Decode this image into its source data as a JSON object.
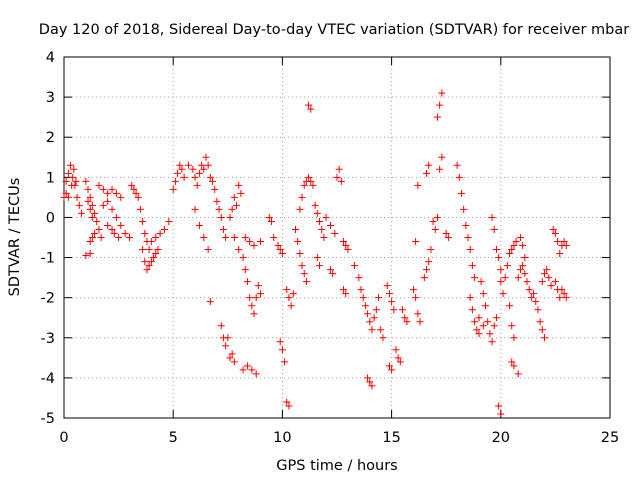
{
  "chart_data": {
    "type": "scatter",
    "title": "Day 120 of 2018, Sidereal Day-to-day VTEC variation (SDTVAR) for receiver mbar",
    "xlabel": "GPS time / hours",
    "ylabel": "SDTVAR / TECUs",
    "xlim": [
      0,
      25
    ],
    "ylim": [
      -5,
      4
    ],
    "xticks": [
      0,
      5,
      10,
      15,
      20,
      25
    ],
    "yticks": [
      -5,
      -4,
      -3,
      -2,
      -1,
      0,
      1,
      2,
      3,
      4
    ],
    "grid": true,
    "marker": "+",
    "color": "#ff0000",
    "series": [
      {
        "name": "SDTVAR",
        "points": [
          [
            0.0,
            0.5
          ],
          [
            0.1,
            0.9
          ],
          [
            0.2,
            1.1
          ],
          [
            0.3,
            1.3
          ],
          [
            0.4,
            1.0
          ],
          [
            0.5,
            0.8
          ],
          [
            0.6,
            0.5
          ],
          [
            0.7,
            0.3
          ],
          [
            0.8,
            0.1
          ],
          [
            0.1,
            0.6
          ],
          [
            0.2,
            0.5
          ],
          [
            0.35,
            0.8
          ],
          [
            0.45,
            1.2
          ],
          [
            0.55,
            0.9
          ],
          [
            1.0,
            0.9
          ],
          [
            1.1,
            0.7
          ],
          [
            1.2,
            0.5
          ],
          [
            1.3,
            0.3
          ],
          [
            1.4,
            0.1
          ],
          [
            1.5,
            -0.1
          ],
          [
            1.6,
            -0.3
          ],
          [
            1.7,
            -0.5
          ],
          [
            1.1,
            0.4
          ],
          [
            1.2,
            0.2
          ],
          [
            1.3,
            0.0
          ],
          [
            1.2,
            -0.6
          ],
          [
            1.3,
            -0.5
          ],
          [
            1.4,
            -0.4
          ],
          [
            1.0,
            -0.95
          ],
          [
            1.2,
            -0.9
          ],
          [
            1.8,
            0.3
          ],
          [
            2.0,
            0.4
          ],
          [
            2.2,
            0.2
          ],
          [
            2.4,
            0.0
          ],
          [
            2.6,
            -0.2
          ],
          [
            2.8,
            -0.4
          ],
          [
            3.0,
            -0.5
          ],
          [
            1.6,
            0.8
          ],
          [
            1.8,
            0.7
          ],
          [
            2.0,
            0.6
          ],
          [
            2.2,
            0.7
          ],
          [
            2.4,
            0.6
          ],
          [
            2.6,
            0.5
          ],
          [
            2.0,
            -0.2
          ],
          [
            2.2,
            -0.3
          ],
          [
            2.3,
            -0.4
          ],
          [
            2.5,
            -0.5
          ],
          [
            3.1,
            0.8
          ],
          [
            3.2,
            0.7
          ],
          [
            3.3,
            0.6
          ],
          [
            3.4,
            0.5
          ],
          [
            3.5,
            0.2
          ],
          [
            3.6,
            -0.1
          ],
          [
            3.7,
            -0.4
          ],
          [
            3.8,
            -0.6
          ],
          [
            3.9,
            -0.8
          ],
          [
            3.6,
            -0.8
          ],
          [
            3.7,
            -1.1
          ],
          [
            3.8,
            -1.3
          ],
          [
            3.9,
            -1.2
          ],
          [
            4.0,
            -1.1
          ],
          [
            4.1,
            -1.0
          ],
          [
            4.2,
            -0.9
          ],
          [
            4.3,
            -0.8
          ],
          [
            4.0,
            -0.6
          ],
          [
            4.2,
            -0.5
          ],
          [
            4.4,
            -0.4
          ],
          [
            4.6,
            -0.3
          ],
          [
            4.8,
            -0.1
          ],
          [
            5.0,
            0.7
          ],
          [
            5.1,
            0.9
          ],
          [
            5.2,
            1.1
          ],
          [
            5.3,
            1.3
          ],
          [
            5.4,
            1.2
          ],
          [
            5.5,
            1.0
          ],
          [
            5.7,
            1.3
          ],
          [
            5.9,
            1.2
          ],
          [
            6.0,
            1.0
          ],
          [
            6.1,
            0.8
          ],
          [
            6.2,
            1.1
          ],
          [
            6.3,
            1.3
          ],
          [
            6.4,
            1.2
          ],
          [
            6.5,
            1.5
          ],
          [
            6.6,
            1.3
          ],
          [
            6.7,
            1.0
          ],
          [
            6.8,
            0.9
          ],
          [
            6.9,
            0.7
          ],
          [
            7.0,
            0.4
          ],
          [
            7.1,
            0.2
          ],
          [
            7.2,
            0.0
          ],
          [
            7.3,
            -0.3
          ],
          [
            7.4,
            -0.5
          ],
          [
            6.0,
            0.2
          ],
          [
            6.2,
            -0.2
          ],
          [
            6.4,
            -0.5
          ],
          [
            6.6,
            -0.8
          ],
          [
            6.7,
            -2.1
          ],
          [
            7.2,
            -2.7
          ],
          [
            7.3,
            -3.0
          ],
          [
            7.4,
            -3.2
          ],
          [
            7.5,
            -3.0
          ],
          [
            7.6,
            -3.5
          ],
          [
            7.7,
            -3.4
          ],
          [
            7.8,
            -3.6
          ],
          [
            7.6,
            0.0
          ],
          [
            7.7,
            0.2
          ],
          [
            7.8,
            0.5
          ],
          [
            7.9,
            0.3
          ],
          [
            8.0,
            0.8
          ],
          [
            8.1,
            0.6
          ],
          [
            7.8,
            -0.5
          ],
          [
            8.0,
            -0.8
          ],
          [
            8.2,
            -1.0
          ],
          [
            8.3,
            -1.3
          ],
          [
            8.4,
            -1.6
          ],
          [
            8.5,
            -2.0
          ],
          [
            8.6,
            -2.2
          ],
          [
            8.7,
            -2.4
          ],
          [
            8.8,
            -2.0
          ],
          [
            8.9,
            -1.7
          ],
          [
            9.0,
            -1.9
          ],
          [
            8.3,
            -0.5
          ],
          [
            8.5,
            -0.6
          ],
          [
            8.7,
            -0.7
          ],
          [
            9.0,
            -0.6
          ],
          [
            8.2,
            -3.8
          ],
          [
            8.4,
            -3.7
          ],
          [
            8.6,
            -3.8
          ],
          [
            8.8,
            -3.9
          ],
          [
            9.4,
            0.0
          ],
          [
            9.5,
            -0.1
          ],
          [
            9.6,
            -0.5
          ],
          [
            9.8,
            -0.7
          ],
          [
            9.9,
            -0.8
          ],
          [
            10.0,
            -0.9
          ],
          [
            9.9,
            -3.1
          ],
          [
            10.0,
            -3.3
          ],
          [
            10.1,
            -3.6
          ],
          [
            10.2,
            -1.8
          ],
          [
            10.3,
            -2.0
          ],
          [
            10.4,
            -2.2
          ],
          [
            10.5,
            -1.9
          ],
          [
            10.2,
            -4.6
          ],
          [
            10.3,
            -4.7
          ],
          [
            10.6,
            -0.3
          ],
          [
            10.7,
            -0.6
          ],
          [
            10.8,
            -0.9
          ],
          [
            10.9,
            -1.2
          ],
          [
            11.0,
            -1.4
          ],
          [
            11.1,
            -1.6
          ],
          [
            10.8,
            0.2
          ],
          [
            10.9,
            0.5
          ],
          [
            11.0,
            0.8
          ],
          [
            11.1,
            0.9
          ],
          [
            11.2,
            1.0
          ],
          [
            11.3,
            0.9
          ],
          [
            11.4,
            0.8
          ],
          [
            11.2,
            2.8
          ],
          [
            11.3,
            2.7
          ],
          [
            11.5,
            0.3
          ],
          [
            11.6,
            0.1
          ],
          [
            11.7,
            -0.1
          ],
          [
            11.8,
            -0.3
          ],
          [
            11.9,
            -0.5
          ],
          [
            11.6,
            -1.0
          ],
          [
            11.7,
            -1.2
          ],
          [
            12.0,
            0.0
          ],
          [
            12.2,
            -0.2
          ],
          [
            12.4,
            -0.4
          ],
          [
            12.3,
            -1.4
          ],
          [
            12.2,
            -1.3
          ],
          [
            12.5,
            1.0
          ],
          [
            12.6,
            1.2
          ],
          [
            12.7,
            0.9
          ],
          [
            12.8,
            -0.6
          ],
          [
            12.9,
            -0.7
          ],
          [
            13.0,
            -0.8
          ],
          [
            12.8,
            -1.8
          ],
          [
            12.9,
            -1.9
          ],
          [
            13.3,
            -1.2
          ],
          [
            13.5,
            -1.5
          ],
          [
            13.6,
            -1.8
          ],
          [
            13.7,
            -2.0
          ],
          [
            13.8,
            -2.2
          ],
          [
            13.9,
            -2.4
          ],
          [
            14.0,
            -2.6
          ],
          [
            14.1,
            -2.8
          ],
          [
            14.2,
            -2.5
          ],
          [
            14.3,
            -2.3
          ],
          [
            14.4,
            -2.0
          ],
          [
            13.9,
            -4.0
          ],
          [
            14.0,
            -4.1
          ],
          [
            14.1,
            -4.2
          ],
          [
            14.5,
            -2.8
          ],
          [
            14.6,
            -3.0
          ],
          [
            14.8,
            -1.7
          ],
          [
            14.9,
            -1.9
          ],
          [
            15.0,
            -2.1
          ],
          [
            15.1,
            -2.3
          ],
          [
            14.9,
            -3.7
          ],
          [
            15.0,
            -3.8
          ],
          [
            15.2,
            -3.3
          ],
          [
            15.3,
            -3.5
          ],
          [
            15.4,
            -3.6
          ],
          [
            15.5,
            -2.3
          ],
          [
            15.6,
            -2.5
          ],
          [
            15.7,
            -2.6
          ],
          [
            16.0,
            -1.8
          ],
          [
            16.1,
            -2.0
          ],
          [
            16.2,
            -2.4
          ],
          [
            16.3,
            -2.6
          ],
          [
            16.1,
            -0.6
          ],
          [
            16.2,
            0.8
          ],
          [
            16.5,
            -1.5
          ],
          [
            16.6,
            -1.3
          ],
          [
            16.7,
            -1.1
          ],
          [
            16.8,
            -0.8
          ],
          [
            16.6,
            1.1
          ],
          [
            16.7,
            1.3
          ],
          [
            16.9,
            -0.1
          ],
          [
            17.0,
            -0.3
          ],
          [
            17.1,
            0.0
          ],
          [
            17.2,
            1.2
          ],
          [
            17.3,
            1.5
          ],
          [
            17.1,
            2.5
          ],
          [
            17.2,
            2.8
          ],
          [
            17.3,
            3.1
          ],
          [
            17.5,
            -0.4
          ],
          [
            17.6,
            -0.5
          ],
          [
            18.0,
            1.3
          ],
          [
            18.1,
            1.0
          ],
          [
            18.2,
            0.6
          ],
          [
            18.3,
            0.2
          ],
          [
            18.4,
            -0.2
          ],
          [
            18.5,
            -0.5
          ],
          [
            18.6,
            -0.8
          ],
          [
            18.7,
            -1.2
          ],
          [
            18.8,
            -1.5
          ],
          [
            18.6,
            -2.0
          ],
          [
            18.7,
            -2.3
          ],
          [
            18.8,
            -2.6
          ],
          [
            18.9,
            -2.8
          ],
          [
            19.0,
            -2.5
          ],
          [
            19.1,
            -1.6
          ],
          [
            19.2,
            -1.9
          ],
          [
            19.3,
            -2.2
          ],
          [
            19.4,
            -2.6
          ],
          [
            19.5,
            -2.9
          ],
          [
            19.6,
            -3.1
          ],
          [
            19.7,
            -2.7
          ],
          [
            19.8,
            -2.5
          ],
          [
            19.0,
            -2.9
          ],
          [
            19.2,
            -2.7
          ],
          [
            19.6,
            0.0
          ],
          [
            19.7,
            -0.3
          ],
          [
            19.8,
            -0.8
          ],
          [
            19.9,
            -1.0
          ],
          [
            20.0,
            -1.3
          ],
          [
            19.9,
            -4.7
          ],
          [
            20.0,
            -4.9
          ],
          [
            20.0,
            -1.6
          ],
          [
            20.1,
            -1.9
          ],
          [
            20.2,
            -1.5
          ],
          [
            20.3,
            -1.2
          ],
          [
            20.4,
            -0.9
          ],
          [
            20.5,
            -0.8
          ],
          [
            20.6,
            -0.7
          ],
          [
            20.7,
            -0.6
          ],
          [
            20.4,
            -2.2
          ],
          [
            20.5,
            -2.7
          ],
          [
            20.6,
            -3.0
          ],
          [
            20.5,
            -3.6
          ],
          [
            20.6,
            -3.7
          ],
          [
            20.8,
            -3.9
          ],
          [
            20.8,
            -1.5
          ],
          [
            20.9,
            -1.3
          ],
          [
            21.0,
            -1.2
          ],
          [
            21.1,
            -1.4
          ],
          [
            21.2,
            -1.6
          ],
          [
            21.3,
            -1.8
          ],
          [
            21.4,
            -2.0
          ],
          [
            21.5,
            -1.9
          ],
          [
            20.9,
            -0.5
          ],
          [
            21.0,
            -0.7
          ],
          [
            21.1,
            -1.0
          ],
          [
            21.6,
            -2.1
          ],
          [
            21.7,
            -2.3
          ],
          [
            21.8,
            -2.6
          ],
          [
            21.9,
            -2.8
          ],
          [
            22.0,
            -3.0
          ],
          [
            21.9,
            -1.6
          ],
          [
            22.0,
            -1.4
          ],
          [
            22.1,
            -1.3
          ],
          [
            22.2,
            -1.5
          ],
          [
            22.3,
            -1.7
          ],
          [
            22.4,
            -0.3
          ],
          [
            22.5,
            -0.4
          ],
          [
            22.6,
            -0.6
          ],
          [
            22.7,
            -0.9
          ],
          [
            22.8,
            -0.7
          ],
          [
            22.9,
            -0.6
          ],
          [
            23.0,
            -0.7
          ],
          [
            22.5,
            -1.6
          ],
          [
            22.6,
            -1.8
          ],
          [
            22.7,
            -2.0
          ],
          [
            22.8,
            -1.8
          ],
          [
            22.9,
            -1.9
          ],
          [
            23.0,
            -2.0
          ]
        ]
      }
    ]
  }
}
